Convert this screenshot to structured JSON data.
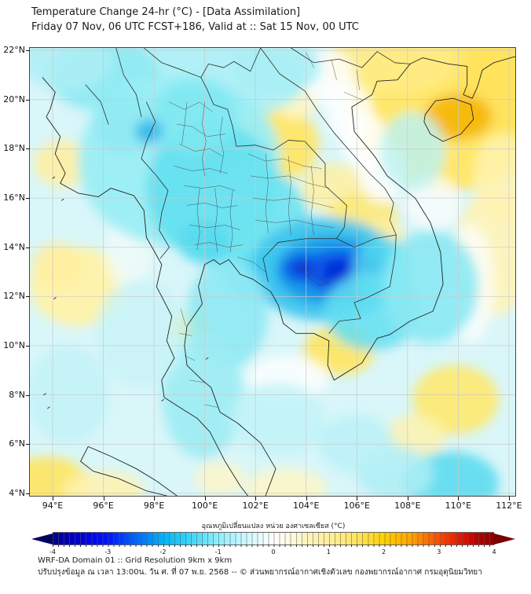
{
  "header": {
    "title": "Temperature Change 24-hr (°C) - [Data Assimilation]",
    "subtitle": "Friday 07 Nov, 06 UTC FCST+186, Valid at :: Sat 15 Nov, 00 UTC"
  },
  "map": {
    "lon_range": [
      93.1,
      112.25
    ],
    "lat_range": [
      3.9,
      22.1
    ],
    "grid_color": "#c9c9c9",
    "base_color": "#d9f6f9",
    "x_ticks": [
      {
        "value": 94,
        "label": "94°E"
      },
      {
        "value": 96,
        "label": "96°E"
      },
      {
        "value": 98,
        "label": "98°E"
      },
      {
        "value": 100,
        "label": "100°E"
      },
      {
        "value": 102,
        "label": "102°E"
      },
      {
        "value": 104,
        "label": "104°E"
      },
      {
        "value": 106,
        "label": "106°E"
      },
      {
        "value": 108,
        "label": "108°E"
      },
      {
        "value": 110,
        "label": "110°E"
      },
      {
        "value": 112,
        "label": "112°E"
      }
    ],
    "y_ticks": [
      {
        "value": 22,
        "label": "22°N"
      },
      {
        "value": 20,
        "label": "20°N"
      },
      {
        "value": 18,
        "label": "18°N"
      },
      {
        "value": 16,
        "label": "16°N"
      },
      {
        "value": 14,
        "label": "14°N"
      },
      {
        "value": 12,
        "label": "12°N"
      },
      {
        "value": 10,
        "label": "10°N"
      },
      {
        "value": 8,
        "label": "8°N"
      },
      {
        "value": 6,
        "label": "6°N"
      },
      {
        "value": 4,
        "label": "4°N"
      }
    ]
  },
  "chart_data": {
    "type": "heatmap",
    "title": "Temperature Change 24-hr (°C) - [Data Assimilation]",
    "units": "°C",
    "value_range": [
      -4,
      4
    ],
    "x_axis": "longitude 94°E–112°E",
    "y_axis": "latitude 4°N–22°N",
    "anomaly_blobs": [
      {
        "lon": 109.6,
        "lat": 19.6,
        "rlon": 3.9,
        "rlat": 3.3,
        "value": 1.5,
        "color": "#ffe769",
        "opacity": 1
      },
      {
        "lon": 111.6,
        "lat": 20.6,
        "rlon": 1.6,
        "rlat": 2.0,
        "value": 2.0,
        "color": "#ffe25c",
        "opacity": 0.9
      },
      {
        "lon": 107.3,
        "lat": 21.5,
        "rlon": 2.6,
        "rlat": 1.3,
        "value": 1.0,
        "color": "#ffeb85",
        "opacity": 0.9
      },
      {
        "lon": 110.0,
        "lat": 19.3,
        "rlon": 1.35,
        "rlat": 0.95,
        "value": 2.5,
        "color": "#f6b301",
        "opacity": 0.85
      },
      {
        "lon": 102.8,
        "lat": 18.2,
        "rlon": 1.7,
        "rlat": 1.5,
        "value": 1.5,
        "color": "#ffe765",
        "opacity": 0.95
      },
      {
        "lon": 103.6,
        "lat": 19.9,
        "rlon": 0.8,
        "rlat": 0.7,
        "value": 0.6,
        "color": "#fff6c0",
        "opacity": 0.85
      },
      {
        "lon": 105.1,
        "lat": 16.4,
        "rlon": 1.3,
        "rlat": 1.0,
        "value": 0.8,
        "color": "#fff0a0",
        "opacity": 0.85
      },
      {
        "lon": 106.3,
        "lat": 15.2,
        "rlon": 1.3,
        "rlat": 1.1,
        "value": 1.2,
        "color": "#ffe96e",
        "opacity": 0.85
      },
      {
        "lon": 107.0,
        "lat": 14.2,
        "rlon": 0.9,
        "rlat": 1.0,
        "value": 0.8,
        "color": "#ffefa0",
        "opacity": 0.8
      },
      {
        "lon": 111.4,
        "lat": 13.8,
        "rlon": 1.5,
        "rlat": 2.6,
        "value": 0.5,
        "color": "#fff4b8",
        "opacity": 0.9
      },
      {
        "lon": 111.8,
        "lat": 16.8,
        "rlon": 1.2,
        "rlat": 1.8,
        "value": 0.5,
        "color": "#fff3b2",
        "opacity": 0.85
      },
      {
        "lon": 94.4,
        "lat": 17.4,
        "rlon": 1.15,
        "rlat": 0.95,
        "value": 0.7,
        "color": "#fff0a2",
        "opacity": 0.9
      },
      {
        "lon": 95.0,
        "lat": 12.4,
        "rlon": 1.9,
        "rlat": 1.6,
        "value": 0.7,
        "color": "#fff2a8",
        "opacity": 0.95
      },
      {
        "lon": 94.2,
        "lat": 13.3,
        "rlon": 1.0,
        "rlat": 0.9,
        "value": 0.7,
        "color": "#ffefa0",
        "opacity": 0.85
      },
      {
        "lon": 105.3,
        "lat": 9.8,
        "rlon": 1.4,
        "rlat": 1.0,
        "value": 1.3,
        "color": "#ffe65e",
        "opacity": 0.9
      },
      {
        "lon": 99.5,
        "lat": 10.7,
        "rlon": 0.85,
        "rlat": 0.65,
        "value": 1.2,
        "color": "#ffe765",
        "opacity": 0.85
      },
      {
        "lon": 109.9,
        "lat": 7.8,
        "rlon": 1.7,
        "rlat": 1.4,
        "value": 1.2,
        "color": "#ffe96e",
        "opacity": 0.9
      },
      {
        "lon": 108.3,
        "lat": 6.3,
        "rlon": 1.2,
        "rlat": 0.9,
        "value": 0.6,
        "color": "#fff2aa",
        "opacity": 0.8
      },
      {
        "lon": 93.8,
        "lat": 4.4,
        "rlon": 1.6,
        "rlat": 1.1,
        "value": 1.3,
        "color": "#ffe55f",
        "opacity": 0.9
      },
      {
        "lon": 96.0,
        "lat": 4.1,
        "rlon": 1.6,
        "rlat": 0.8,
        "value": 0.6,
        "color": "#fff2ae",
        "opacity": 0.85
      },
      {
        "lon": 103.2,
        "lat": 4.2,
        "rlon": 1.6,
        "rlat": 0.8,
        "value": 0.4,
        "color": "#fff6c6",
        "opacity": 0.85
      },
      {
        "lon": 100.6,
        "lat": 4.6,
        "rlon": 1.0,
        "rlat": 0.7,
        "value": 0.4,
        "color": "#fff6c6",
        "opacity": 0.8
      },
      {
        "lon": 104.9,
        "lat": 20.9,
        "rlon": 1.0,
        "rlat": 1.1,
        "value": 0,
        "color": "#ffffff",
        "opacity": 0.85
      },
      {
        "lon": 105.7,
        "lat": 19.5,
        "rlon": 0.9,
        "rlat": 1.2,
        "value": 0,
        "color": "#ffffff",
        "opacity": 0.85
      },
      {
        "lon": 106.3,
        "lat": 18.3,
        "rlon": 0.9,
        "rlat": 1.2,
        "value": 0,
        "color": "#ffffff",
        "opacity": 0.85
      },
      {
        "lon": 107.0,
        "lat": 17.0,
        "rlon": 0.9,
        "rlat": 1.2,
        "value": 0,
        "color": "#ffffff",
        "opacity": 0.8
      },
      {
        "lon": 110.5,
        "lat": 12.5,
        "rlon": 0.9,
        "rlat": 2.4,
        "value": 0,
        "color": "#fcfefc",
        "opacity": 0.8
      },
      {
        "lon": 109.0,
        "lat": 15.8,
        "rlon": 1.1,
        "rlat": 1.1,
        "value": 0,
        "color": "#fbfdfb",
        "opacity": 0.8
      },
      {
        "lon": 103.3,
        "lat": 8.7,
        "rlon": 1.6,
        "rlat": 0.9,
        "value": 0,
        "color": "#ffffff",
        "opacity": 0.8
      },
      {
        "lon": 97.0,
        "lat": 13.8,
        "rlon": 0.9,
        "rlat": 1.6,
        "value": 0,
        "color": "#f3fcf9",
        "opacity": 0.7
      },
      {
        "lon": 99.5,
        "lat": 20.8,
        "rlon": 4.5,
        "rlat": 1.8,
        "value": -0.6,
        "color": "#aff0f6",
        "opacity": 0.95
      },
      {
        "lon": 96.0,
        "lat": 21.0,
        "rlon": 2.2,
        "rlat": 1.5,
        "value": -0.8,
        "color": "#8feaf3",
        "opacity": 0.9
      },
      {
        "lon": 102.8,
        "lat": 21.3,
        "rlon": 1.8,
        "rlat": 1.1,
        "value": -0.6,
        "color": "#a8eef5",
        "opacity": 0.85
      },
      {
        "lon": 99.0,
        "lat": 17.5,
        "rlon": 4.0,
        "rlat": 3.5,
        "value": -0.7,
        "color": "#9beef4",
        "opacity": 0.95
      },
      {
        "lon": 100.3,
        "lat": 16.3,
        "rlon": 2.6,
        "rlat": 2.8,
        "value": -1.0,
        "color": "#64e0f0",
        "opacity": 0.9
      },
      {
        "lon": 99.6,
        "lat": 19.3,
        "rlon": 1.7,
        "rlat": 1.5,
        "value": -0.9,
        "color": "#7ee7f2",
        "opacity": 0.85
      },
      {
        "lon": 96.8,
        "lat": 19.0,
        "rlon": 1.2,
        "rlat": 1.2,
        "value": -0.8,
        "color": "#8feaf3",
        "opacity": 0.8
      },
      {
        "lon": 101.8,
        "lat": 15.0,
        "rlon": 2.3,
        "rlat": 2.3,
        "value": -1.0,
        "color": "#6ee3f1",
        "opacity": 0.9
      },
      {
        "lon": 97.8,
        "lat": 18.7,
        "rlon": 0.55,
        "rlat": 0.5,
        "value": -1.8,
        "color": "#2cb4ec",
        "opacity": 0.85
      },
      {
        "lon": 100.0,
        "lat": 14.2,
        "rlon": 1.0,
        "rlat": 0.9,
        "value": -1.2,
        "color": "#55daef",
        "opacity": 0.8
      },
      {
        "lon": 102.0,
        "lat": 12.8,
        "rlon": 1.2,
        "rlat": 1.0,
        "value": -1.1,
        "color": "#5fdef0",
        "opacity": 0.85
      },
      {
        "lon": 104.8,
        "lat": 13.1,
        "rlon": 3.0,
        "rlat": 2.1,
        "value": -1.5,
        "color": "#3ec5ee",
        "opacity": 0.95
      },
      {
        "lon": 105.0,
        "lat": 13.05,
        "rlon": 2.2,
        "rlat": 1.4,
        "value": -2.2,
        "color": "#1297ea",
        "opacity": 0.9
      },
      {
        "lon": 105.3,
        "lat": 13.0,
        "rlon": 1.45,
        "rlat": 0.9,
        "value": -3.0,
        "color": "#0b59e8",
        "opacity": 0.95
      },
      {
        "lon": 105.35,
        "lat": 13.0,
        "rlon": 0.8,
        "rlat": 0.5,
        "value": -3.6,
        "color": "#0128d8",
        "opacity": 0.95
      },
      {
        "lon": 103.9,
        "lat": 13.15,
        "rlon": 0.85,
        "rlat": 0.6,
        "value": -3.0,
        "color": "#0b59e8",
        "opacity": 0.85
      },
      {
        "lon": 103.85,
        "lat": 13.15,
        "rlon": 0.45,
        "rlat": 0.35,
        "value": -3.4,
        "color": "#0630cf",
        "opacity": 0.8
      },
      {
        "lon": 107.0,
        "lat": 13.0,
        "rlon": 1.2,
        "rlat": 1.4,
        "value": -1.2,
        "color": "#56d9f0",
        "opacity": 0.8
      },
      {
        "lon": 106.6,
        "lat": 11.4,
        "rlon": 1.9,
        "rlat": 1.6,
        "value": -1.1,
        "color": "#63dff1",
        "opacity": 0.85
      },
      {
        "lon": 108.9,
        "lat": 12.4,
        "rlon": 1.9,
        "rlat": 2.3,
        "value": -0.8,
        "color": "#8ae9f4",
        "opacity": 0.9
      },
      {
        "lon": 108.2,
        "lat": 17.9,
        "rlon": 1.3,
        "rlat": 1.6,
        "value": -0.5,
        "color": "#b9f2f7",
        "opacity": 0.8
      },
      {
        "lon": 100.9,
        "lat": 11.3,
        "rlon": 1.6,
        "rlat": 2.2,
        "value": -0.8,
        "color": "#8fe9f4",
        "opacity": 0.9
      },
      {
        "lon": 99.9,
        "lat": 8.0,
        "rlon": 1.6,
        "rlat": 2.6,
        "value": -0.7,
        "color": "#9cecf4",
        "opacity": 0.9
      },
      {
        "lon": 102.9,
        "lat": 7.0,
        "rlon": 1.9,
        "rlat": 1.5,
        "value": -0.4,
        "color": "#c2f3f8",
        "opacity": 0.85
      },
      {
        "lon": 109.7,
        "lat": 4.4,
        "rlon": 1.9,
        "rlat": 1.3,
        "value": -1.1,
        "color": "#5cdcf0",
        "opacity": 0.9
      },
      {
        "lon": 107.5,
        "lat": 4.8,
        "rlon": 1.5,
        "rlat": 1.1,
        "value": -0.6,
        "color": "#aeeff6",
        "opacity": 0.85
      },
      {
        "lon": 106.0,
        "lat": 6.0,
        "rlon": 1.5,
        "rlat": 1.2,
        "value": -0.5,
        "color": "#b8f1f7",
        "opacity": 0.8
      },
      {
        "lon": 94.5,
        "lat": 21.6,
        "rlon": 1.8,
        "rlat": 1.2,
        "value": -0.6,
        "color": "#aeeff6",
        "opacity": 0.85
      },
      {
        "lon": 97.5,
        "lat": 10.5,
        "rlon": 1.8,
        "rlat": 2.2,
        "value": -0.3,
        "color": "#c8f4f8",
        "opacity": 0.8
      },
      {
        "lon": 94.6,
        "lat": 8.0,
        "rlon": 1.6,
        "rlat": 2.0,
        "value": -0.4,
        "color": "#bff2f7",
        "opacity": 0.8
      }
    ]
  },
  "colorbar": {
    "label": "อุณหภูมิเปลี่ยนแปลง หน่วย องศาเซลเซียส (°C)",
    "ticks": [
      {
        "value": -4,
        "label": "-4"
      },
      {
        "value": -3,
        "label": "-3"
      },
      {
        "value": -2,
        "label": "-2"
      },
      {
        "value": -1,
        "label": "-1"
      },
      {
        "value": 0,
        "label": "0"
      },
      {
        "value": 1,
        "label": "1"
      },
      {
        "value": 2,
        "label": "2"
      },
      {
        "value": 3,
        "label": "3"
      },
      {
        "value": 4,
        "label": "4"
      }
    ],
    "gradient_stops": [
      {
        "value": -4,
        "color": "#00008b"
      },
      {
        "value": -3.5,
        "color": "#0000d4"
      },
      {
        "value": -3,
        "color": "#0014ff"
      },
      {
        "value": -2.5,
        "color": "#0064ff"
      },
      {
        "value": -2,
        "color": "#00b4f8"
      },
      {
        "value": -1.5,
        "color": "#3cd7f8"
      },
      {
        "value": -1,
        "color": "#8eeefb"
      },
      {
        "value": -0.5,
        "color": "#cdf8fd"
      },
      {
        "value": -0.15,
        "color": "#f2fdfe"
      },
      {
        "value": 0,
        "color": "#ffffff"
      },
      {
        "value": 0.15,
        "color": "#fffdf0"
      },
      {
        "value": 0.5,
        "color": "#fdf5c8"
      },
      {
        "value": 1,
        "color": "#ffef9c"
      },
      {
        "value": 1.5,
        "color": "#ffe560"
      },
      {
        "value": 2,
        "color": "#ffd200"
      },
      {
        "value": 2.5,
        "color": "#ffa300"
      },
      {
        "value": 3,
        "color": "#fa4b00"
      },
      {
        "value": 3.4,
        "color": "#e01800"
      },
      {
        "value": 3.7,
        "color": "#b40000"
      },
      {
        "value": 4,
        "color": "#8b0000"
      }
    ],
    "left_arrow_color": "#000060",
    "right_arrow_color": "#7a0000"
  },
  "footer": {
    "line1": "WRF-DA Domain 01 :: Grid Resolution 9km x 9km",
    "line2": "ปรับปรุงข้อมูล ณ เวลา 13:00น. วัน ศ. ที่ 07 พ.ย. 2568 -- © ส่วนพยากรณ์อากาศเชิงตัวเลข กองพยากรณ์อากาศ กรมอุตุนิยมวิทยา"
  }
}
